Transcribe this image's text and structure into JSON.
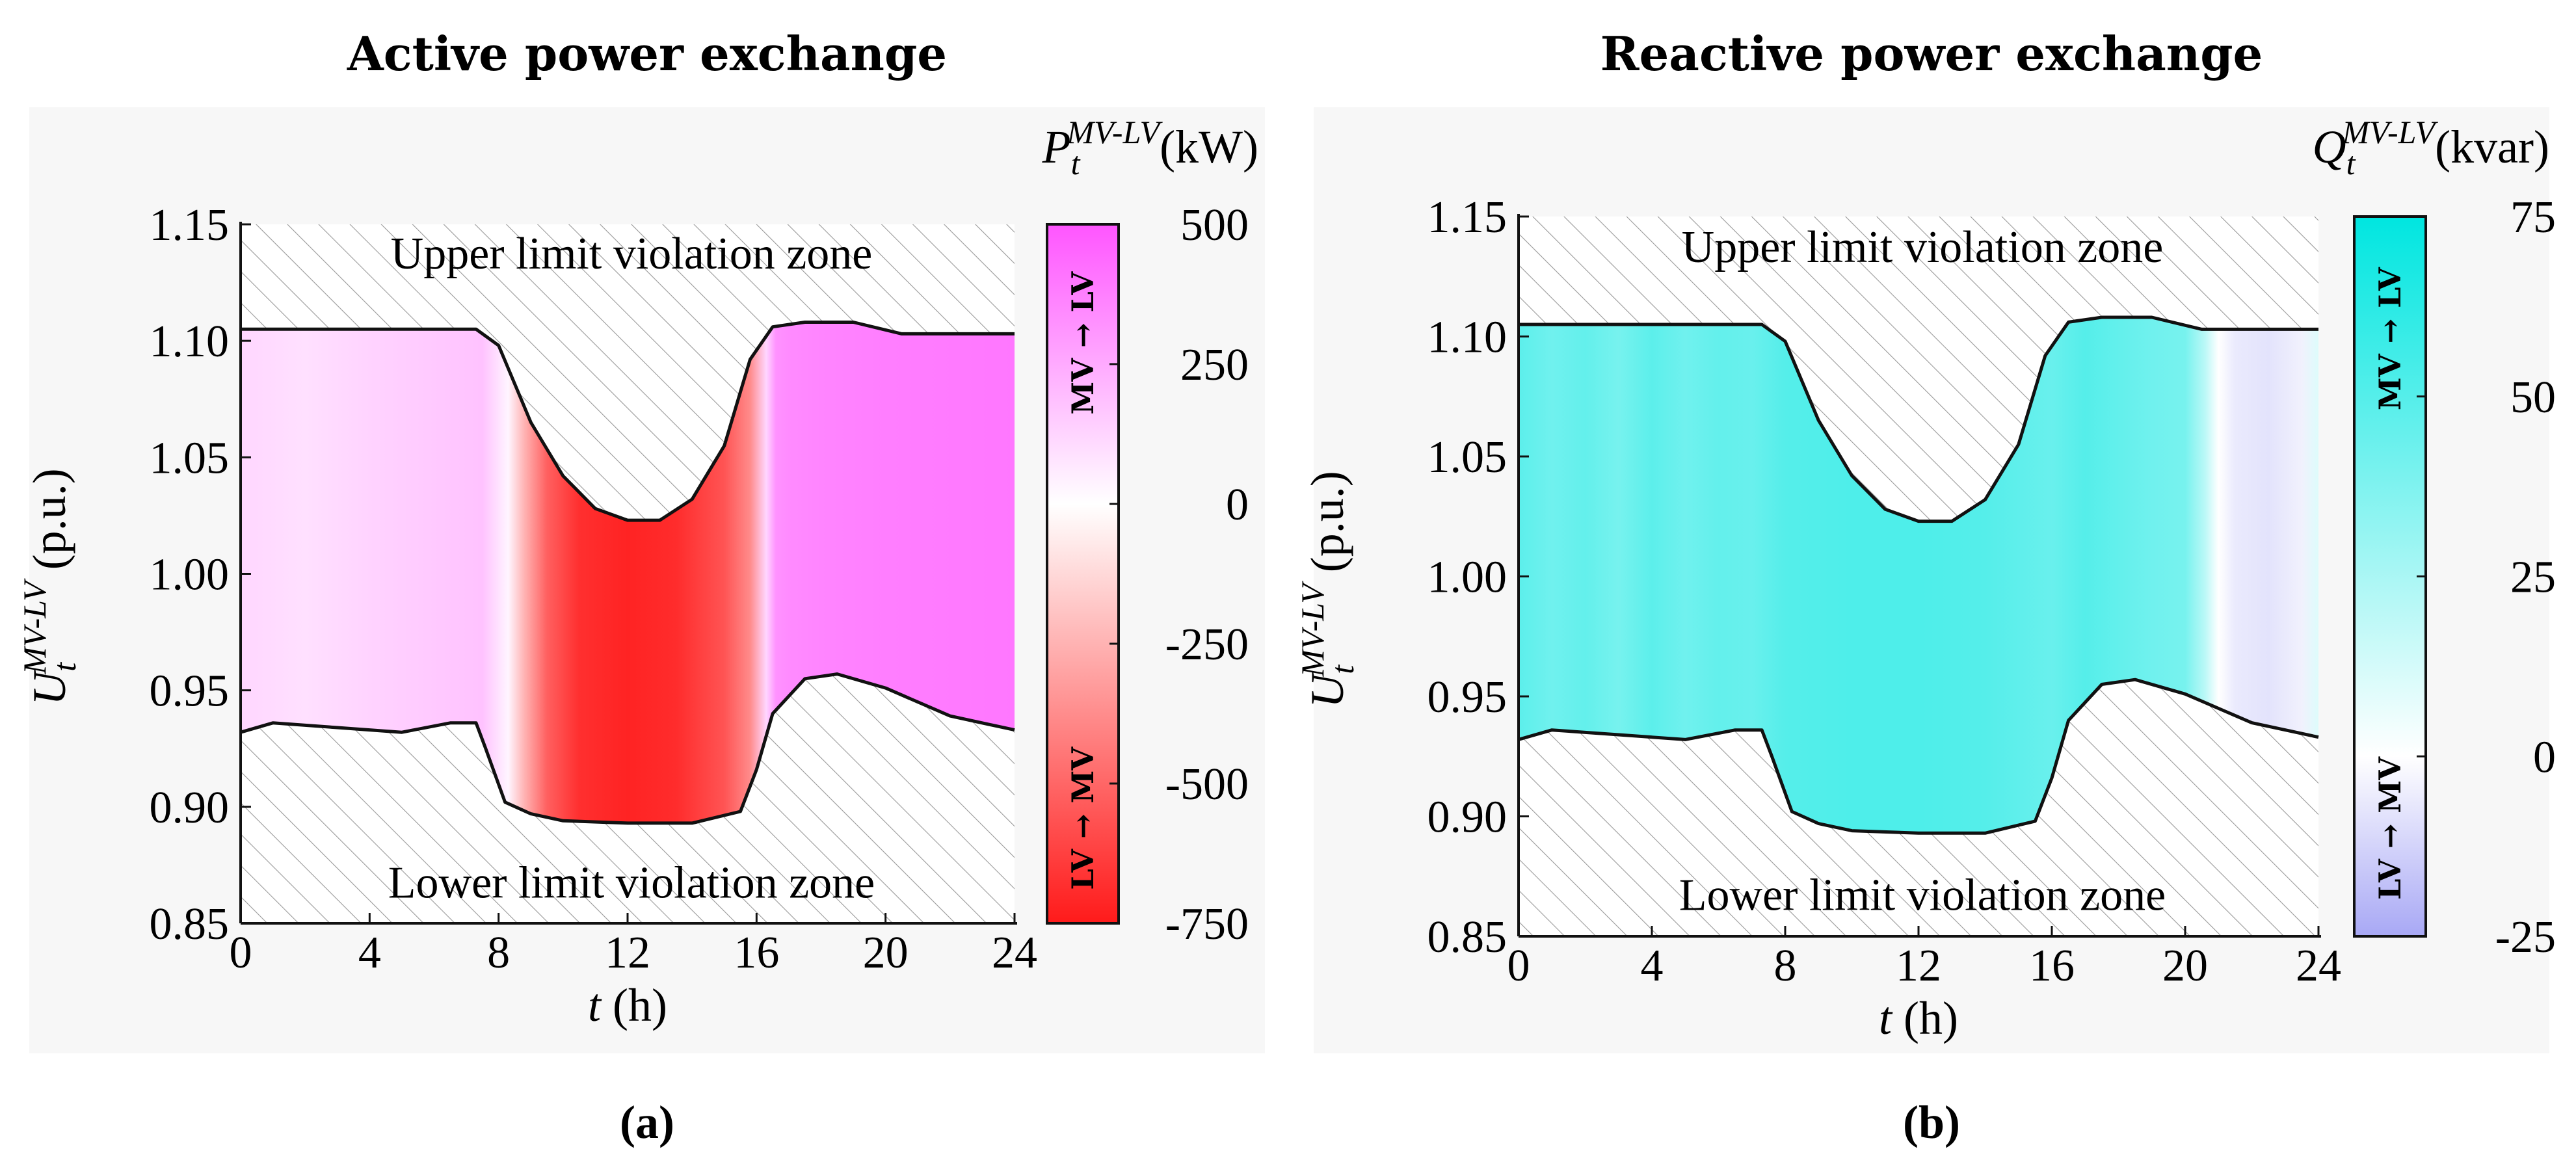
{
  "figure_captions": [
    "(a)",
    "(b)"
  ],
  "colors": {
    "active_positive": "#ff55ff",
    "active_negative": "#ff1a1a",
    "reactive_positive": "#00e6e0",
    "reactive_negative": "#a8a8f5",
    "neutral": "#ffffff",
    "limit_line": "#111111",
    "hatch": "#9a9a9a"
  },
  "chart_data": [
    {
      "type": "heatmap",
      "title": "Active power exchange",
      "xlabel_var": "t",
      "xlabel_unit": " (h)",
      "ylabel_var": "U",
      "ylabel_sub": "t",
      "ylabel_sup": "MV-LV",
      "ylabel_unit": " (p.u.)",
      "xlim": [
        0,
        24
      ],
      "ylim": [
        0.85,
        1.15
      ],
      "xticks": [
        0,
        4,
        8,
        12,
        16,
        20,
        24
      ],
      "yticks": [
        0.85,
        0.9,
        0.95,
        1.0,
        1.05,
        1.1,
        1.15
      ],
      "ytick_labels": [
        "0.85",
        "0.90",
        "0.95",
        "1.00",
        "1.05",
        "1.10",
        "1.15"
      ],
      "upper_zone_label": "Upper limit violation zone",
      "lower_zone_label": "Lower limit violation zone",
      "colorbar": {
        "var": "P",
        "sub": "t",
        "sup": "MV-LV",
        "unit": "(kW)",
        "range": [
          -750,
          500
        ],
        "ticks": [
          500,
          250,
          0,
          -250,
          -500,
          -750
        ],
        "tick_labels": [
          "500",
          "250",
          "0",
          "-250",
          "-500",
          "-750"
        ],
        "top_label": "MV → LV",
        "bottom_label": "LV → MV"
      },
      "upper_limit": {
        "t": [
          0,
          7.3,
          8,
          9,
          10,
          11,
          12,
          13,
          14,
          15,
          15.8,
          16.5,
          17.5,
          19,
          20.5,
          22,
          24
        ],
        "u": [
          1.105,
          1.105,
          1.098,
          1.065,
          1.042,
          1.028,
          1.023,
          1.023,
          1.032,
          1.055,
          1.092,
          1.106,
          1.108,
          1.108,
          1.103,
          1.103,
          1.103
        ]
      },
      "lower_limit": {
        "t": [
          0,
          1,
          3,
          5,
          6.5,
          7.3,
          7.6,
          8.2,
          9,
          10,
          12,
          14,
          15.5,
          16,
          16.5,
          17.5,
          18.5,
          20,
          22,
          24
        ],
        "u": [
          0.932,
          0.936,
          0.934,
          0.932,
          0.936,
          0.936,
          0.925,
          0.902,
          0.897,
          0.894,
          0.893,
          0.893,
          0.898,
          0.916,
          0.94,
          0.955,
          0.957,
          0.951,
          0.939,
          0.933
        ]
      },
      "value_profile": {
        "t": [
          0,
          2,
          4,
          6,
          7.5,
          8.3,
          8.8,
          9.5,
          10.5,
          12,
          13.5,
          15,
          15.8,
          16.3,
          16.6,
          17,
          18,
          20,
          24
        ],
        "v": [
          120,
          90,
          130,
          160,
          180,
          30,
          -250,
          -520,
          -680,
          -720,
          -690,
          -560,
          -380,
          120,
          320,
          340,
          360,
          380,
          400
        ]
      }
    },
    {
      "type": "heatmap",
      "title": "Reactive power exchange",
      "xlabel_var": "t",
      "xlabel_unit": " (h)",
      "ylabel_var": "U",
      "ylabel_sub": "t",
      "ylabel_sup": "MV-LV",
      "ylabel_unit": " (p.u.)",
      "xlim": [
        0,
        24
      ],
      "ylim": [
        0.85,
        1.15
      ],
      "xticks": [
        0,
        4,
        8,
        12,
        16,
        20,
        24
      ],
      "yticks": [
        0.85,
        0.9,
        0.95,
        1.0,
        1.05,
        1.1,
        1.15
      ],
      "ytick_labels": [
        "0.85",
        "0.90",
        "0.95",
        "1.00",
        "1.05",
        "1.10",
        "1.15"
      ],
      "upper_zone_label": "Upper limit violation zone",
      "lower_zone_label": "Lower limit violation zone",
      "colorbar": {
        "var": "Q",
        "sub": "t",
        "sup": "MV-LV",
        "unit": "(kvar)",
        "range": [
          -25,
          75
        ],
        "ticks": [
          75,
          50,
          25,
          0,
          -25
        ],
        "tick_labels": [
          "75",
          "50",
          "25",
          "0",
          "-25"
        ],
        "top_label": "MV → LV",
        "bottom_label": "LV → MV"
      },
      "upper_limit": {
        "t": [
          0,
          7.3,
          8,
          9,
          10,
          11,
          12,
          13,
          14,
          15,
          15.8,
          16.5,
          17.5,
          19,
          20.5,
          22,
          24
        ],
        "u": [
          1.105,
          1.105,
          1.098,
          1.065,
          1.042,
          1.028,
          1.023,
          1.023,
          1.032,
          1.055,
          1.092,
          1.106,
          1.108,
          1.108,
          1.103,
          1.103,
          1.103
        ]
      },
      "lower_limit": {
        "t": [
          0,
          1,
          3,
          5,
          6.5,
          7.3,
          7.6,
          8.2,
          9,
          10,
          12,
          14,
          15.5,
          16,
          16.5,
          17.5,
          18.5,
          20,
          22,
          24
        ],
        "u": [
          0.932,
          0.936,
          0.934,
          0.932,
          0.936,
          0.936,
          0.925,
          0.902,
          0.897,
          0.894,
          0.893,
          0.893,
          0.898,
          0.916,
          0.94,
          0.955,
          0.957,
          0.951,
          0.939,
          0.933
        ]
      },
      "value_profile": {
        "t": [
          0,
          1,
          2,
          3,
          4,
          5,
          6,
          7,
          8,
          10,
          12,
          14,
          16,
          17,
          18,
          19,
          20,
          20.6,
          21,
          21.5,
          22.5,
          23.5,
          24
        ],
        "v": [
          48,
          42,
          46,
          40,
          48,
          42,
          46,
          44,
          50,
          52,
          52,
          50,
          44,
          50,
          46,
          42,
          40,
          20,
          0,
          -6,
          -8,
          -4,
          10
        ]
      }
    }
  ]
}
